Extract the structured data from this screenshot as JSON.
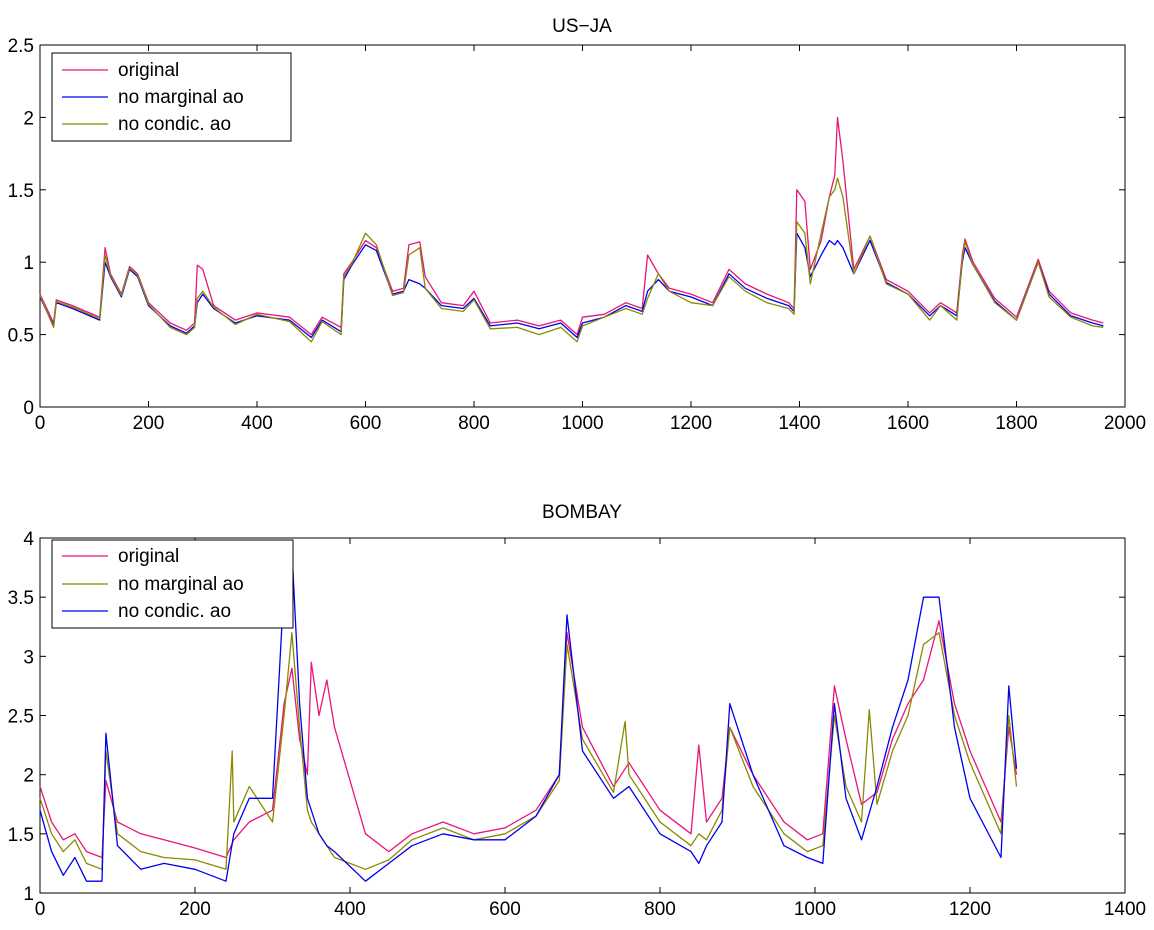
{
  "chart_data": [
    {
      "type": "line",
      "title": "US−JA",
      "xlabel": "",
      "ylabel": "",
      "xlim": [
        0,
        2000
      ],
      "ylim": [
        0,
        2.5
      ],
      "xticks": [
        "0",
        "200",
        "400",
        "600",
        "800",
        "1000",
        "1200",
        "1400",
        "1600",
        "1800",
        "2000"
      ],
      "yticks": [
        "0",
        "0.5",
        "1",
        "1.5",
        "2",
        "2.5"
      ],
      "legend_position": "top-left",
      "grid": false,
      "series": [
        {
          "name": "original",
          "color": "#e8157a",
          "x": [
            0,
            25,
            30,
            60,
            110,
            120,
            130,
            150,
            165,
            180,
            200,
            240,
            270,
            285,
            290,
            300,
            320,
            360,
            400,
            460,
            500,
            520,
            555,
            560,
            575,
            600,
            620,
            650,
            670,
            680,
            700,
            710,
            740,
            780,
            800,
            830,
            880,
            920,
            960,
            990,
            1000,
            1040,
            1080,
            1110,
            1120,
            1140,
            1160,
            1200,
            1240,
            1270,
            1300,
            1340,
            1380,
            1390,
            1395,
            1410,
            1420,
            1440,
            1455,
            1465,
            1470,
            1480,
            1500,
            1530,
            1560,
            1600,
            1640,
            1660,
            1690,
            1700,
            1705,
            1720,
            1760,
            1800,
            1840,
            1860,
            1900,
            1940,
            1960
          ],
          "y": [
            0.78,
            0.58,
            0.74,
            0.7,
            0.62,
            1.1,
            0.92,
            0.78,
            0.97,
            0.92,
            0.72,
            0.58,
            0.53,
            0.58,
            0.98,
            0.95,
            0.7,
            0.6,
            0.65,
            0.62,
            0.5,
            0.62,
            0.55,
            0.92,
            1.0,
            1.15,
            1.1,
            0.8,
            0.82,
            1.12,
            1.14,
            0.9,
            0.72,
            0.7,
            0.8,
            0.58,
            0.6,
            0.56,
            0.6,
            0.5,
            0.62,
            0.64,
            0.72,
            0.68,
            1.05,
            0.92,
            0.82,
            0.78,
            0.72,
            0.95,
            0.85,
            0.78,
            0.72,
            0.68,
            1.5,
            1.42,
            0.95,
            1.15,
            1.45,
            1.6,
            2.0,
            1.7,
            0.95,
            1.18,
            0.88,
            0.8,
            0.65,
            0.72,
            0.65,
            1.05,
            1.16,
            1.0,
            0.75,
            0.62,
            1.02,
            0.8,
            0.65,
            0.6,
            0.58
          ]
        },
        {
          "name": "no marginal ao",
          "color": "#0000ee",
          "x": [
            0,
            25,
            30,
            60,
            110,
            120,
            130,
            150,
            165,
            180,
            200,
            240,
            270,
            285,
            290,
            300,
            320,
            360,
            400,
            460,
            500,
            520,
            555,
            560,
            575,
            600,
            620,
            650,
            670,
            680,
            700,
            710,
            740,
            780,
            800,
            830,
            880,
            920,
            960,
            990,
            1000,
            1040,
            1080,
            1110,
            1120,
            1140,
            1160,
            1200,
            1240,
            1270,
            1300,
            1340,
            1380,
            1390,
            1395,
            1410,
            1420,
            1440,
            1455,
            1465,
            1470,
            1480,
            1500,
            1530,
            1560,
            1600,
            1640,
            1660,
            1690,
            1700,
            1705,
            1720,
            1760,
            1800,
            1840,
            1860,
            1900,
            1940,
            1960
          ],
          "y": [
            0.76,
            0.56,
            0.72,
            0.68,
            0.6,
            1.0,
            0.9,
            0.76,
            0.95,
            0.9,
            0.7,
            0.56,
            0.51,
            0.56,
            0.72,
            0.78,
            0.68,
            0.58,
            0.63,
            0.6,
            0.48,
            0.6,
            0.52,
            0.88,
            0.98,
            1.12,
            1.08,
            0.78,
            0.8,
            0.88,
            0.85,
            0.82,
            0.7,
            0.68,
            0.75,
            0.56,
            0.58,
            0.54,
            0.58,
            0.48,
            0.58,
            0.62,
            0.7,
            0.66,
            0.8,
            0.88,
            0.8,
            0.76,
            0.7,
            0.92,
            0.82,
            0.75,
            0.7,
            0.66,
            1.2,
            1.1,
            0.9,
            1.05,
            1.15,
            1.12,
            1.15,
            1.1,
            0.92,
            1.15,
            0.86,
            0.78,
            0.63,
            0.7,
            0.63,
            1.0,
            1.1,
            0.98,
            0.73,
            0.6,
            1.0,
            0.78,
            0.63,
            0.58,
            0.56
          ]
        },
        {
          "name": "no condic. ao",
          "color": "#8a8a00",
          "x": [
            0,
            25,
            30,
            60,
            110,
            120,
            130,
            150,
            165,
            180,
            200,
            240,
            270,
            285,
            290,
            300,
            320,
            360,
            400,
            460,
            500,
            520,
            555,
            560,
            575,
            600,
            620,
            650,
            670,
            680,
            700,
            710,
            740,
            780,
            800,
            830,
            880,
            920,
            960,
            990,
            1000,
            1040,
            1080,
            1110,
            1120,
            1140,
            1160,
            1200,
            1240,
            1270,
            1300,
            1340,
            1380,
            1390,
            1395,
            1410,
            1420,
            1440,
            1455,
            1465,
            1470,
            1480,
            1500,
            1530,
            1560,
            1600,
            1640,
            1660,
            1690,
            1700,
            1705,
            1720,
            1760,
            1800,
            1840,
            1860,
            1900,
            1940,
            1960
          ],
          "y": [
            0.77,
            0.55,
            0.73,
            0.69,
            0.61,
            1.05,
            0.91,
            0.77,
            0.96,
            0.91,
            0.71,
            0.55,
            0.5,
            0.55,
            0.75,
            0.8,
            0.69,
            0.57,
            0.64,
            0.59,
            0.45,
            0.59,
            0.5,
            0.9,
            0.99,
            1.2,
            1.12,
            0.77,
            0.79,
            1.05,
            1.1,
            0.82,
            0.68,
            0.66,
            0.74,
            0.54,
            0.55,
            0.5,
            0.55,
            0.45,
            0.56,
            0.62,
            0.68,
            0.64,
            0.75,
            0.92,
            0.8,
            0.72,
            0.7,
            0.9,
            0.8,
            0.72,
            0.68,
            0.64,
            1.28,
            1.2,
            0.85,
            1.2,
            1.45,
            1.5,
            1.58,
            1.45,
            0.92,
            1.18,
            0.85,
            0.78,
            0.6,
            0.7,
            0.6,
            1.02,
            1.14,
            0.98,
            0.72,
            0.6,
            1.0,
            0.76,
            0.62,
            0.56,
            0.55
          ]
        }
      ]
    },
    {
      "type": "line",
      "title": "BOMBAY",
      "xlabel": "",
      "ylabel": "",
      "xlim": [
        0,
        1400
      ],
      "ylim": [
        1,
        4
      ],
      "xticks": [
        "0",
        "200",
        "400",
        "600",
        "800",
        "1000",
        "1200",
        "1400"
      ],
      "yticks": [
        "1",
        "1.5",
        "2",
        "2.5",
        "3",
        "3.5",
        "4"
      ],
      "legend_position": "top-left",
      "grid": false,
      "series": [
        {
          "name": "original",
          "color": "#e8157a",
          "x": [
            0,
            15,
            30,
            45,
            60,
            80,
            85,
            100,
            130,
            160,
            200,
            240,
            250,
            270,
            300,
            315,
            325,
            335,
            345,
            350,
            360,
            370,
            380,
            420,
            450,
            480,
            520,
            560,
            600,
            640,
            670,
            680,
            700,
            740,
            760,
            800,
            840,
            850,
            860,
            880,
            890,
            920,
            960,
            990,
            1010,
            1025,
            1040,
            1060,
            1080,
            1100,
            1120,
            1140,
            1160,
            1180,
            1200,
            1240,
            1250,
            1260
          ],
          "y": [
            1.9,
            1.6,
            1.45,
            1.5,
            1.35,
            1.3,
            1.95,
            1.6,
            1.5,
            1.45,
            1.38,
            1.3,
            1.45,
            1.6,
            1.7,
            2.6,
            2.9,
            2.3,
            2.0,
            2.95,
            2.5,
            2.8,
            2.4,
            1.5,
            1.35,
            1.5,
            1.6,
            1.5,
            1.55,
            1.7,
            2.0,
            3.2,
            2.4,
            1.9,
            2.1,
            1.7,
            1.5,
            2.25,
            1.6,
            1.8,
            2.4,
            2.0,
            1.6,
            1.45,
            1.5,
            2.75,
            2.3,
            1.75,
            1.85,
            2.3,
            2.6,
            2.8,
            3.3,
            2.6,
            2.2,
            1.6,
            2.4,
            2.0
          ]
        },
        {
          "name": "no marginal ao",
          "color": "#8a8a00",
          "x": [
            0,
            15,
            30,
            45,
            60,
            80,
            85,
            100,
            130,
            160,
            200,
            240,
            248,
            250,
            270,
            300,
            315,
            325,
            335,
            345,
            350,
            360,
            370,
            380,
            420,
            450,
            480,
            520,
            560,
            600,
            640,
            670,
            680,
            700,
            740,
            755,
            760,
            800,
            840,
            850,
            860,
            880,
            890,
            920,
            960,
            990,
            1010,
            1025,
            1040,
            1060,
            1070,
            1080,
            1100,
            1120,
            1140,
            1160,
            1180,
            1200,
            1240,
            1250,
            1260
          ],
          "y": [
            1.8,
            1.5,
            1.35,
            1.45,
            1.25,
            1.2,
            2.2,
            1.5,
            1.35,
            1.3,
            1.28,
            1.2,
            2.2,
            1.6,
            1.9,
            1.6,
            2.5,
            3.2,
            2.4,
            1.7,
            1.6,
            1.5,
            1.4,
            1.3,
            1.2,
            1.28,
            1.45,
            1.55,
            1.45,
            1.5,
            1.65,
            1.95,
            3.1,
            2.3,
            1.85,
            2.45,
            2.0,
            1.6,
            1.4,
            1.5,
            1.45,
            1.7,
            2.4,
            1.9,
            1.5,
            1.35,
            1.4,
            2.5,
            1.9,
            1.6,
            2.55,
            1.75,
            2.2,
            2.5,
            3.1,
            3.2,
            2.5,
            2.1,
            1.5,
            2.5,
            1.9
          ]
        },
        {
          "name": "no condic. ao",
          "color": "#0000ee",
          "x": [
            0,
            15,
            30,
            45,
            60,
            80,
            85,
            100,
            130,
            160,
            200,
            240,
            250,
            270,
            300,
            315,
            325,
            335,
            345,
            350,
            360,
            370,
            380,
            420,
            450,
            480,
            520,
            560,
            600,
            640,
            670,
            680,
            700,
            740,
            760,
            800,
            840,
            850,
            860,
            880,
            890,
            920,
            960,
            990,
            1010,
            1025,
            1040,
            1060,
            1080,
            1100,
            1120,
            1140,
            1160,
            1180,
            1200,
            1240,
            1250,
            1260
          ],
          "y": [
            1.7,
            1.35,
            1.15,
            1.3,
            1.1,
            1.1,
            2.35,
            1.4,
            1.2,
            1.25,
            1.2,
            1.1,
            1.5,
            1.8,
            1.8,
            3.6,
            3.9,
            2.6,
            1.8,
            1.7,
            1.5,
            1.4,
            1.35,
            1.1,
            1.25,
            1.4,
            1.5,
            1.45,
            1.45,
            1.65,
            2.0,
            3.35,
            2.2,
            1.8,
            1.9,
            1.5,
            1.35,
            1.25,
            1.4,
            1.6,
            2.6,
            2.0,
            1.4,
            1.3,
            1.25,
            2.6,
            1.8,
            1.45,
            1.9,
            2.4,
            2.8,
            3.5,
            3.5,
            2.4,
            1.8,
            1.3,
            2.75,
            2.05
          ]
        }
      ]
    }
  ]
}
